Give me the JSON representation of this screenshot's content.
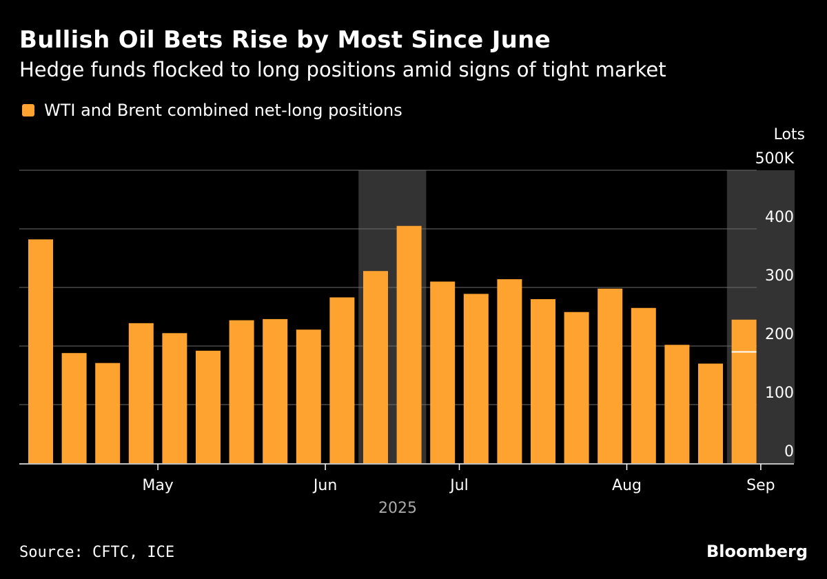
{
  "title": "Bullish Oil Bets Rise by Most Since June",
  "subtitle": "Hedge funds flocked to long positions amid signs of tight market",
  "source": "Source: CFTC, ICE",
  "brand": "Bloomberg",
  "colors": {
    "bar": "#ffa330",
    "background": "#000000",
    "grid": "#6e6e6e",
    "highlight_band": "#333333",
    "text": "#ffffff",
    "year_text": "#aaaaaa"
  },
  "chart_data": {
    "type": "bar",
    "title": "Bullish Oil Bets Rise by Most Since June",
    "subtitle": "Hedge funds flocked to long positions amid signs of tight market",
    "ylabel": "Lots",
    "ylim": [
      0,
      500000
    ],
    "yticks": [
      0,
      100,
      200,
      300,
      400,
      "500K"
    ],
    "ytick_values": [
      0,
      100000,
      200000,
      300000,
      400000,
      500000
    ],
    "y_axis_position": "right",
    "grid": true,
    "legend": [
      {
        "label": "WTI and Brent combined net-long positions",
        "color": "#ffa330"
      }
    ],
    "legend_position": "top-left",
    "x_tick_labels": [
      "May",
      "Jun",
      "Jul",
      "Aug",
      "Sep"
    ],
    "x_tick_bar_positions": [
      3.5,
      8.5,
      12.5,
      17.5,
      21.5
    ],
    "year_label": "2025",
    "highlight_bar_ranges": [
      [
        10,
        11
      ],
      [
        21,
        22
      ]
    ],
    "series": [
      {
        "name": "WTI and Brent combined net-long positions",
        "values": [
          382000,
          188000,
          171000,
          239000,
          222000,
          192000,
          244000,
          246000,
          228000,
          283000,
          328000,
          405000,
          310000,
          289000,
          314000,
          280000,
          258000,
          298000,
          265000,
          202000,
          170000,
          245000
        ]
      }
    ],
    "marker": {
      "bar_index": 21,
      "value": 190000,
      "description": "previous week level"
    }
  }
}
